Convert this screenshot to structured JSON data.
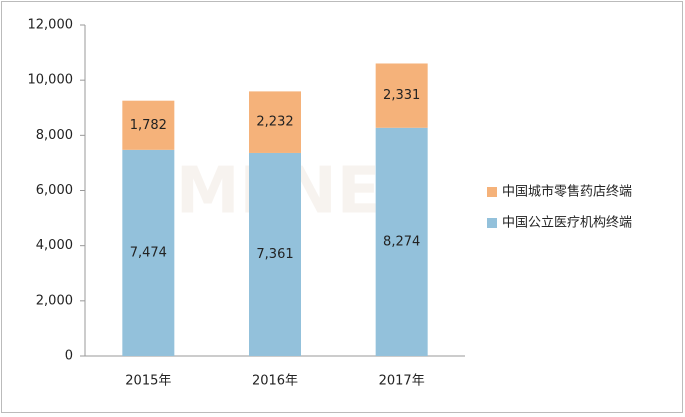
{
  "chart_data": {
    "type": "stacked-bar",
    "watermark": "MENET",
    "categories": [
      "2015年",
      "2016年",
      "2017年"
    ],
    "series": [
      {
        "name": "中国公立医疗机构终端",
        "color": "#93c1db",
        "values": [
          7474,
          7361,
          8274
        ],
        "value_labels": [
          "7,474",
          "7,361",
          "8,274"
        ]
      },
      {
        "name": "中国城市零售药店终端",
        "color": "#f5b27a",
        "values": [
          1782,
          2232,
          2331
        ],
        "value_labels": [
          "1,782",
          "2,232",
          "2,331"
        ]
      }
    ],
    "ylim": [
      0,
      12000
    ],
    "yticks": [
      0,
      {
        "value": 2000,
        "label": "2,000"
      },
      {
        "value": 4000,
        "label": "4,000"
      },
      {
        "value": 6000,
        "label": "6,000"
      },
      {
        "value": 8000,
        "label": "8,000"
      },
      {
        "value": 10000,
        "label": "10,000"
      },
      {
        "value": 12000,
        "label": "12,000"
      }
    ],
    "grid": false,
    "legend": "right"
  }
}
